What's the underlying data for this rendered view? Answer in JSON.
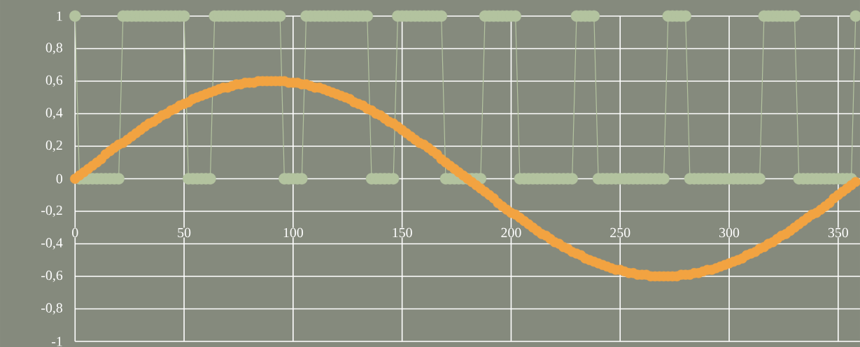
{
  "chart_data": {
    "type": "line",
    "x": [
      0,
      2,
      4,
      6,
      8,
      10,
      12,
      14,
      16,
      18,
      20,
      22,
      24,
      26,
      28,
      30,
      32,
      34,
      36,
      38,
      40,
      42,
      44,
      46,
      48,
      50,
      52,
      54,
      56,
      58,
      60,
      62,
      64,
      66,
      68,
      70,
      72,
      74,
      76,
      78,
      80,
      82,
      84,
      86,
      88,
      90,
      92,
      94,
      96,
      98,
      100,
      102,
      104,
      106,
      108,
      110,
      112,
      114,
      116,
      118,
      120,
      122,
      124,
      126,
      128,
      130,
      132,
      134,
      136,
      138,
      140,
      142,
      144,
      146,
      148,
      150,
      152,
      154,
      156,
      158,
      160,
      162,
      164,
      166,
      168,
      170,
      172,
      174,
      176,
      178,
      180,
      182,
      184,
      186,
      188,
      190,
      192,
      194,
      196,
      198,
      200,
      202,
      204,
      206,
      208,
      210,
      212,
      214,
      216,
      218,
      220,
      222,
      224,
      226,
      228,
      230,
      232,
      234,
      236,
      238,
      240,
      242,
      244,
      246,
      248,
      250,
      252,
      254,
      256,
      258,
      260,
      262,
      264,
      266,
      268,
      270,
      272,
      274,
      276,
      278,
      280,
      282,
      284,
      286,
      288,
      290,
      292,
      294,
      296,
      298,
      300,
      302,
      304,
      306,
      308,
      310,
      312,
      314,
      316,
      318,
      320,
      322,
      324,
      326,
      328,
      330,
      332,
      334,
      336,
      338,
      340,
      342,
      344,
      346,
      348,
      350,
      352,
      354,
      356,
      358
    ],
    "series": [
      {
        "color": "#b3c39f",
        "values": [
          1,
          0,
          0,
          0,
          0,
          0,
          0,
          0,
          0,
          0,
          0,
          1,
          1,
          1,
          1,
          1,
          1,
          1,
          1,
          1,
          1,
          1,
          1,
          1,
          1,
          1,
          0,
          0,
          0,
          0,
          0,
          0,
          1,
          1,
          1,
          1,
          1,
          1,
          1,
          1,
          1,
          1,
          1,
          1,
          1,
          1,
          1,
          1,
          0,
          0,
          0,
          0,
          0,
          1,
          1,
          1,
          1,
          1,
          1,
          1,
          1,
          1,
          1,
          1,
          1,
          1,
          1,
          1,
          0,
          0,
          0,
          0,
          0,
          0,
          1,
          1,
          1,
          1,
          1,
          1,
          1,
          1,
          1,
          1,
          1,
          0,
          0,
          0,
          0,
          0,
          0,
          0,
          0,
          0,
          1,
          1,
          1,
          1,
          1,
          1,
          1,
          1,
          0,
          0,
          0,
          0,
          0,
          0,
          0,
          0,
          0,
          0,
          0,
          0,
          0,
          1,
          1,
          1,
          1,
          1,
          0,
          0,
          0,
          0,
          0,
          0,
          0,
          0,
          0,
          0,
          0,
          0,
          0,
          0,
          0,
          0,
          1,
          1,
          1,
          1,
          1,
          0,
          0,
          0,
          0,
          0,
          0,
          0,
          0,
          0,
          0,
          0,
          0,
          0,
          0,
          0,
          0,
          0,
          1,
          1,
          1,
          1,
          1,
          1,
          1,
          1,
          0,
          0,
          0,
          0,
          0,
          0,
          0,
          0,
          0,
          0,
          0,
          0,
          0,
          1
        ]
      },
      {
        "type": "scatter",
        "color": "#f2a341",
        "values": [
          0,
          0.02,
          0.04,
          0.06,
          0.08,
          0.1,
          0.12,
          0.15,
          0.17,
          0.19,
          0.21,
          0.22,
          0.24,
          0.26,
          0.28,
          0.3,
          0.32,
          0.34,
          0.35,
          0.37,
          0.39,
          0.4,
          0.42,
          0.43,
          0.45,
          0.46,
          0.47,
          0.49,
          0.5,
          0.51,
          0.52,
          0.53,
          0.54,
          0.55,
          0.56,
          0.56,
          0.57,
          0.58,
          0.58,
          0.59,
          0.59,
          0.59,
          0.6,
          0.6,
          0.6,
          0.6,
          0.6,
          0.6,
          0.6,
          0.59,
          0.59,
          0.59,
          0.58,
          0.58,
          0.57,
          0.56,
          0.56,
          0.55,
          0.54,
          0.53,
          0.52,
          0.51,
          0.5,
          0.49,
          0.47,
          0.46,
          0.45,
          0.43,
          0.42,
          0.4,
          0.39,
          0.37,
          0.35,
          0.34,
          0.32,
          0.3,
          0.28,
          0.26,
          0.24,
          0.22,
          0.21,
          0.19,
          0.17,
          0.15,
          0.12,
          0.1,
          0.08,
          0.06,
          0.04,
          0.02,
          0,
          -0.02,
          -0.04,
          -0.06,
          -0.08,
          -0.1,
          -0.12,
          -0.15,
          -0.17,
          -0.19,
          -0.21,
          -0.22,
          -0.24,
          -0.26,
          -0.28,
          -0.3,
          -0.32,
          -0.34,
          -0.35,
          -0.37,
          -0.39,
          -0.4,
          -0.42,
          -0.43,
          -0.45,
          -0.46,
          -0.47,
          -0.49,
          -0.5,
          -0.51,
          -0.52,
          -0.53,
          -0.54,
          -0.55,
          -0.56,
          -0.56,
          -0.57,
          -0.58,
          -0.58,
          -0.59,
          -0.59,
          -0.59,
          -0.6,
          -0.6,
          -0.6,
          -0.6,
          -0.6,
          -0.6,
          -0.6,
          -0.59,
          -0.59,
          -0.59,
          -0.58,
          -0.58,
          -0.57,
          -0.56,
          -0.56,
          -0.55,
          -0.54,
          -0.53,
          -0.52,
          -0.51,
          -0.5,
          -0.49,
          -0.47,
          -0.46,
          -0.45,
          -0.43,
          -0.42,
          -0.4,
          -0.39,
          -0.37,
          -0.35,
          -0.34,
          -0.32,
          -0.3,
          -0.28,
          -0.26,
          -0.24,
          -0.22,
          -0.21,
          -0.19,
          -0.17,
          -0.15,
          -0.12,
          -0.1,
          -0.08,
          -0.06,
          -0.04,
          -0.02
        ]
      }
    ],
    "xlim": [
      0,
      360
    ],
    "ylim": [
      -1,
      1
    ],
    "xticks": [
      0,
      50,
      100,
      150,
      200,
      250,
      300,
      350
    ],
    "yticks": [
      {
        "value": -1,
        "label": "-1"
      },
      {
        "value": -0.8,
        "label": "-0,8"
      },
      {
        "value": -0.6,
        "label": "-0,6"
      },
      {
        "value": -0.4,
        "label": "-0,4"
      },
      {
        "value": -0.2,
        "label": "-0,2"
      },
      0,
      {
        "value": 0.2,
        "label": "0,2"
      },
      {
        "value": 0.4,
        "label": "0,4"
      },
      {
        "value": 0.6,
        "label": "0,6"
      },
      {
        "value": 0.8,
        "label": "0,8"
      },
      1
    ],
    "grid": true,
    "marker": "circle",
    "line_style": "solid"
  }
}
